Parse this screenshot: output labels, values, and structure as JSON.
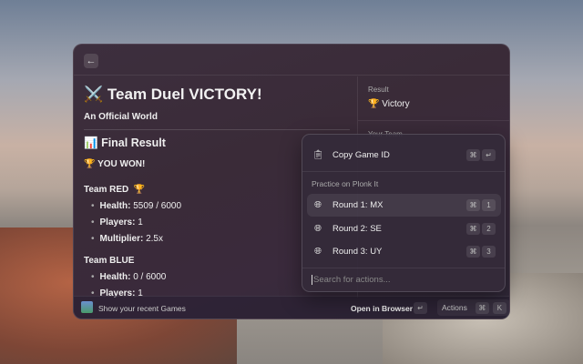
{
  "header": {
    "back_icon": "arrow-left-icon"
  },
  "main": {
    "title_icon": "⚔️",
    "title": "Team Duel VICTORY!",
    "subtitle": "An Official World",
    "section_icon": "📊",
    "section_title": "Final Result",
    "won_icon": "🏆",
    "won_text": "YOU WON!",
    "teams": [
      {
        "name": "Team RED",
        "badge": "🏆",
        "stats": [
          {
            "label": "Health:",
            "value": "5509 / 6000"
          },
          {
            "label": "Players:",
            "value": "1"
          },
          {
            "label": "Multiplier:",
            "value": "2.5x"
          }
        ]
      },
      {
        "name": "Team BLUE",
        "stats": [
          {
            "label": "Health:",
            "value": "0 / 6000"
          },
          {
            "label": "Players:",
            "value": "1"
          }
        ]
      }
    ]
  },
  "sidebar": {
    "result_label": "Result",
    "result_icon": "🏆",
    "result_value": "Victory",
    "team_label": "Your Team"
  },
  "footer": {
    "recent": "Show your recent Games",
    "open": "Open in Browser",
    "open_key": "↵",
    "actions": "Actions",
    "actions_keys": [
      "⌘",
      "K"
    ]
  },
  "popup": {
    "copy": {
      "label": "Copy Game ID",
      "icon": "clipboard-icon",
      "keys": [
        "⌘",
        "↵"
      ]
    },
    "section": "Practice on Plonk It",
    "rounds": [
      {
        "label": "Round 1: MX",
        "keys": [
          "⌘",
          "1"
        ]
      },
      {
        "label": "Round 2: SE",
        "keys": [
          "⌘",
          "2"
        ]
      },
      {
        "label": "Round 3: UY",
        "keys": [
          "⌘",
          "3"
        ]
      }
    ],
    "search_placeholder": "Search for actions..."
  }
}
